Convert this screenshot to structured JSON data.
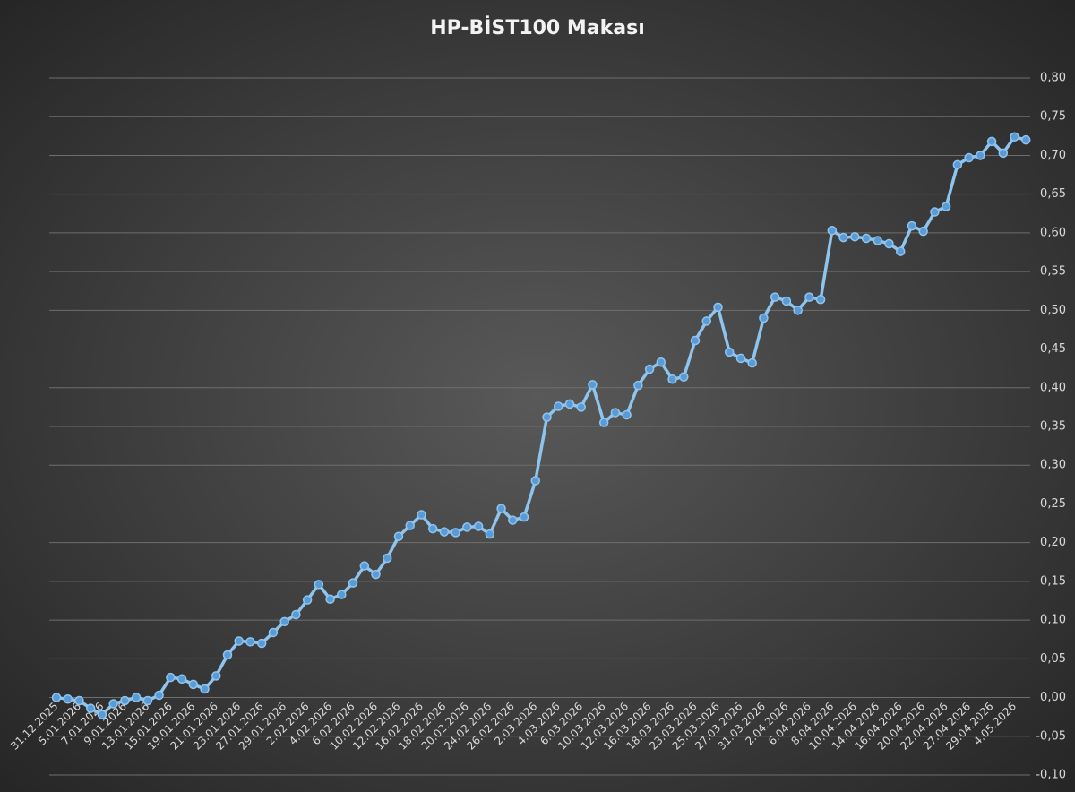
{
  "chart_data": {
    "type": "line",
    "title": "HP-BİST100 Makası",
    "categories": [
      "31.12.2025",
      null,
      "5.01.2026",
      null,
      "7.01.2026",
      null,
      "9.01.2026",
      null,
      "13.01.2026",
      null,
      "15.01.2026",
      null,
      "19.01.2026",
      null,
      "21.01.2026",
      null,
      "23.01.2026",
      null,
      "27.01.2026",
      null,
      "29.01.2026",
      null,
      "2.02.2026",
      null,
      "4.02.2026",
      null,
      "6.02.2026",
      null,
      "10.02.2026",
      null,
      "12.02.2026",
      null,
      "16.02.2026",
      null,
      "18.02.2026",
      null,
      "20.02.2026",
      null,
      "24.02.2026",
      null,
      "26.02.2026",
      null,
      "2.03.2026",
      null,
      "4.03.2026",
      null,
      "6.03.2026",
      null,
      "10.03.2026",
      null,
      "12.03.2026",
      null,
      "16.03.2026",
      null,
      "18.03.2026",
      null,
      "23.03.2026",
      null,
      "25.03.2026",
      null,
      "27.03.2026",
      null,
      "31.03.2026",
      null,
      "2.04.2026",
      null,
      "6.04.2026",
      null,
      "8.04.2026",
      null,
      "10.04.2026",
      null,
      "14.04.2026",
      null,
      "16.04.2026",
      null,
      "20.04.2026",
      null,
      "22.04.2026",
      null,
      "27.04.2026",
      null,
      "29.04.2026",
      null,
      "4.05.2026",
      null
    ],
    "series": [
      {
        "color": "#8ec5ef",
        "marker_color": "#5b9bd5",
        "values": [
          0.0,
          -0.002,
          -0.004,
          -0.014,
          -0.022,
          -0.008,
          -0.004,
          0.0,
          -0.004,
          0.003,
          0.026,
          0.024,
          0.017,
          0.011,
          0.028,
          0.055,
          0.073,
          0.072,
          0.07,
          0.084,
          0.098,
          0.107,
          0.126,
          0.146,
          0.127,
          0.133,
          0.148,
          0.17,
          0.159,
          0.18,
          0.208,
          0.222,
          0.236,
          0.218,
          0.214,
          0.213,
          0.22,
          0.221,
          0.211,
          0.244,
          0.229,
          0.233,
          0.28,
          0.362,
          0.376,
          0.379,
          0.375,
          0.404,
          0.355,
          0.368,
          0.365,
          0.403,
          0.424,
          0.433,
          0.411,
          0.414,
          0.461,
          0.486,
          0.504,
          0.446,
          0.438,
          0.432,
          0.49,
          0.517,
          0.512,
          0.5,
          0.517,
          0.514,
          0.603,
          0.594,
          0.595,
          0.593,
          0.59,
          0.586,
          0.576,
          0.609,
          0.602,
          0.627,
          0.634,
          0.688,
          0.697,
          0.7,
          0.718,
          0.703,
          0.724,
          0.72
        ]
      }
    ],
    "ylim": [
      -0.1,
      0.8
    ],
    "yticks": [
      {
        "value": -0.1,
        "label": "-0,10"
      },
      {
        "value": -0.05,
        "label": "-0,05"
      },
      {
        "value": 0,
        "label": "0,00"
      },
      {
        "value": 0.05,
        "label": "0,05"
      },
      {
        "value": 0.1,
        "label": "0,10"
      },
      {
        "value": 0.15,
        "label": "0,15"
      },
      {
        "value": 0.2,
        "label": "0,20"
      },
      {
        "value": 0.25,
        "label": "0,25"
      },
      {
        "value": 0.3,
        "label": "0,30"
      },
      {
        "value": 0.35,
        "label": "0,35"
      },
      {
        "value": 0.4,
        "label": "0,40"
      },
      {
        "value": 0.45,
        "label": "0,45"
      },
      {
        "value": 0.5,
        "label": "0,50"
      },
      {
        "value": 0.55,
        "label": "0,55"
      },
      {
        "value": 0.6,
        "label": "0,60"
      },
      {
        "value": 0.65,
        "label": "0,65"
      },
      {
        "value": 0.7,
        "label": "0,70"
      },
      {
        "value": 0.75,
        "label": "0,75"
      },
      {
        "value": 0.8,
        "label": "0,80"
      }
    ],
    "grid": true,
    "y_axis_side": "right"
  }
}
